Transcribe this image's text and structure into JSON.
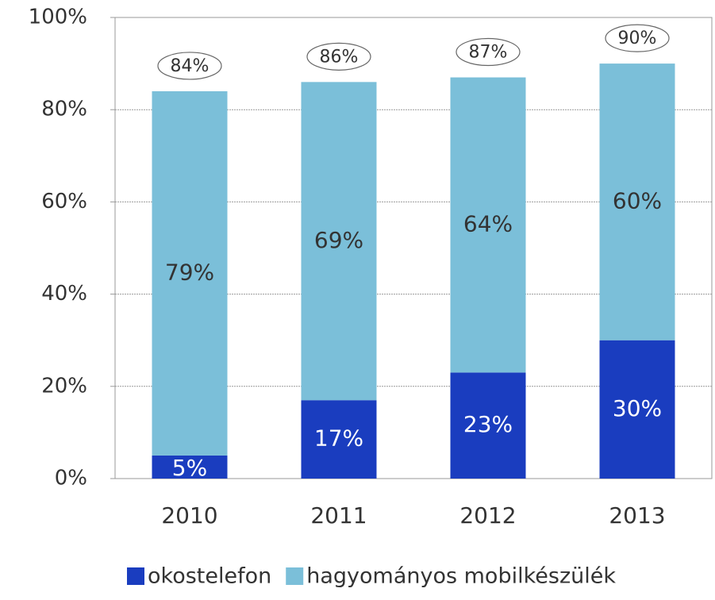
{
  "chart_data": {
    "type": "stacked-bar",
    "categories": [
      "2010",
      "2011",
      "2012",
      "2013"
    ],
    "series": [
      {
        "name": "okostelefon",
        "color": "#1a3dbf",
        "values": [
          5,
          17,
          23,
          30
        ],
        "value_labels": [
          "5%",
          "17%",
          "23%",
          "30%"
        ]
      },
      {
        "name": "hagyományos mobilkészülék",
        "color": "#7bbfd9",
        "values": [
          79,
          69,
          64,
          60
        ],
        "value_labels": [
          "79%",
          "69%",
          "64%",
          "60%"
        ]
      }
    ],
    "totals": {
      "values": [
        84,
        86,
        87,
        90
      ],
      "value_labels": [
        "84%",
        "86%",
        "87%",
        "90%"
      ]
    },
    "ylim": [
      0,
      100
    ],
    "yticks": [
      {
        "value": 0,
        "label": "0%"
      },
      {
        "value": 20,
        "label": "20%"
      },
      {
        "value": 40,
        "label": "40%"
      },
      {
        "value": 60,
        "label": "60%"
      },
      {
        "value": 80,
        "label": "80%"
      },
      {
        "value": 100,
        "label": "100%"
      }
    ],
    "grid": true,
    "legend": "bottom"
  }
}
